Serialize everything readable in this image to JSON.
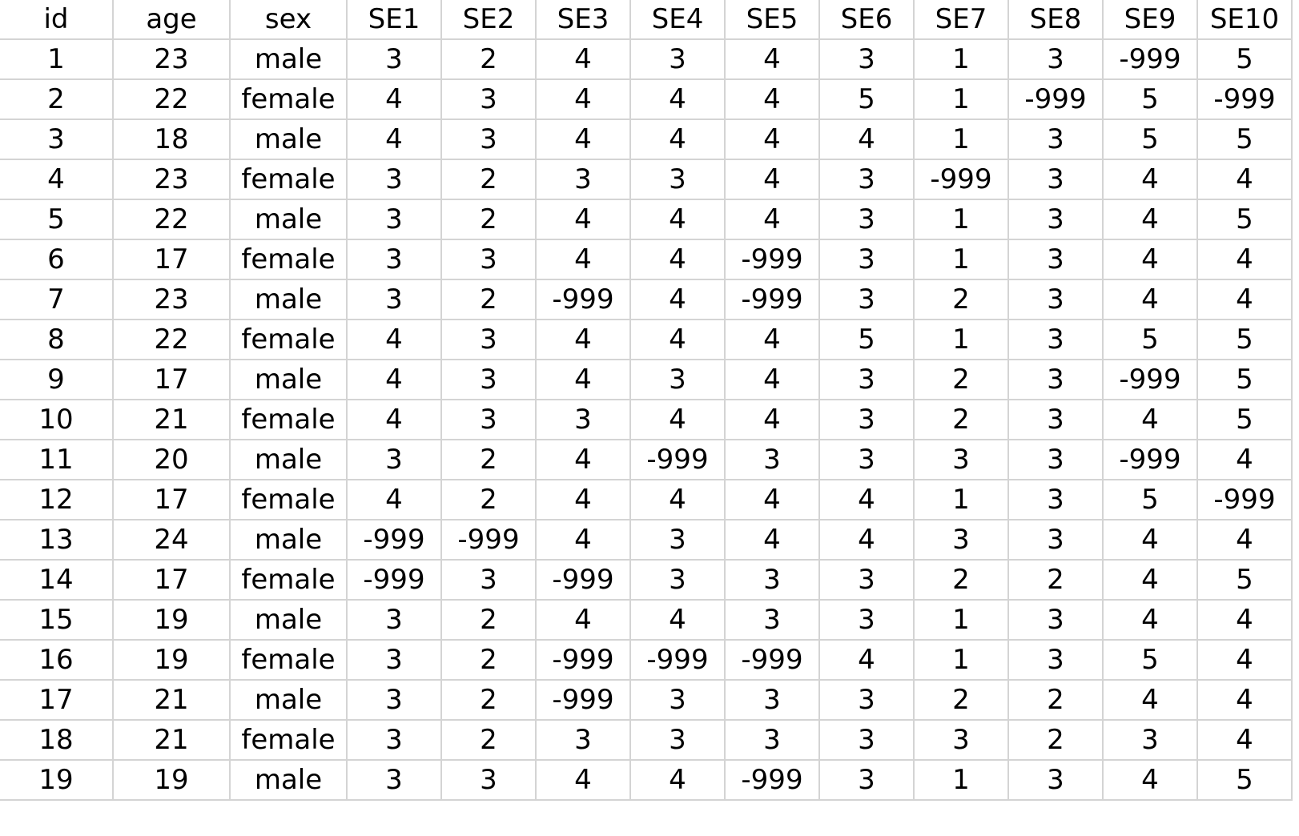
{
  "spreadsheet": {
    "columns": [
      "id",
      "age",
      "sex",
      "SE1",
      "SE2",
      "SE3",
      "SE4",
      "SE5",
      "SE6",
      "SE7",
      "SE8",
      "SE9",
      "SE10"
    ],
    "rows": [
      [
        "1",
        "23",
        "male",
        "3",
        "2",
        "4",
        "3",
        "4",
        "3",
        "1",
        "3",
        "-999",
        "5"
      ],
      [
        "2",
        "22",
        "female",
        "4",
        "3",
        "4",
        "4",
        "4",
        "5",
        "1",
        "-999",
        "5",
        "-999"
      ],
      [
        "3",
        "18",
        "male",
        "4",
        "3",
        "4",
        "4",
        "4",
        "4",
        "1",
        "3",
        "5",
        "5"
      ],
      [
        "4",
        "23",
        "female",
        "3",
        "2",
        "3",
        "3",
        "4",
        "3",
        "-999",
        "3",
        "4",
        "4"
      ],
      [
        "5",
        "22",
        "male",
        "3",
        "2",
        "4",
        "4",
        "4",
        "3",
        "1",
        "3",
        "4",
        "5"
      ],
      [
        "6",
        "17",
        "female",
        "3",
        "3",
        "4",
        "4",
        "-999",
        "3",
        "1",
        "3",
        "4",
        "4"
      ],
      [
        "7",
        "23",
        "male",
        "3",
        "2",
        "-999",
        "4",
        "-999",
        "3",
        "2",
        "3",
        "4",
        "4"
      ],
      [
        "8",
        "22",
        "female",
        "4",
        "3",
        "4",
        "4",
        "4",
        "5",
        "1",
        "3",
        "5",
        "5"
      ],
      [
        "9",
        "17",
        "male",
        "4",
        "3",
        "4",
        "3",
        "4",
        "3",
        "2",
        "3",
        "-999",
        "5"
      ],
      [
        "10",
        "21",
        "female",
        "4",
        "3",
        "3",
        "4",
        "4",
        "3",
        "2",
        "3",
        "4",
        "5"
      ],
      [
        "11",
        "20",
        "male",
        "3",
        "2",
        "4",
        "-999",
        "3",
        "3",
        "3",
        "3",
        "-999",
        "4"
      ],
      [
        "12",
        "17",
        "female",
        "4",
        "2",
        "4",
        "4",
        "4",
        "4",
        "1",
        "3",
        "5",
        "-999"
      ],
      [
        "13",
        "24",
        "male",
        "-999",
        "-999",
        "4",
        "3",
        "4",
        "4",
        "3",
        "3",
        "4",
        "4"
      ],
      [
        "14",
        "17",
        "female",
        "-999",
        "3",
        "-999",
        "3",
        "3",
        "3",
        "2",
        "2",
        "4",
        "5"
      ],
      [
        "15",
        "19",
        "male",
        "3",
        "2",
        "4",
        "4",
        "3",
        "3",
        "1",
        "3",
        "4",
        "4"
      ],
      [
        "16",
        "19",
        "female",
        "3",
        "2",
        "-999",
        "-999",
        "-999",
        "4",
        "1",
        "3",
        "5",
        "4"
      ],
      [
        "17",
        "21",
        "male",
        "3",
        "2",
        "-999",
        "3",
        "3",
        "3",
        "2",
        "2",
        "4",
        "4"
      ],
      [
        "18",
        "21",
        "female",
        "3",
        "2",
        "3",
        "3",
        "3",
        "3",
        "3",
        "2",
        "3",
        "4"
      ],
      [
        "19",
        "19",
        "male",
        "3",
        "3",
        "4",
        "4",
        "-999",
        "3",
        "1",
        "3",
        "4",
        "5"
      ]
    ]
  },
  "colors": {
    "gridline": "#d4d4d4",
    "text": "#000000",
    "background": "#ffffff"
  }
}
